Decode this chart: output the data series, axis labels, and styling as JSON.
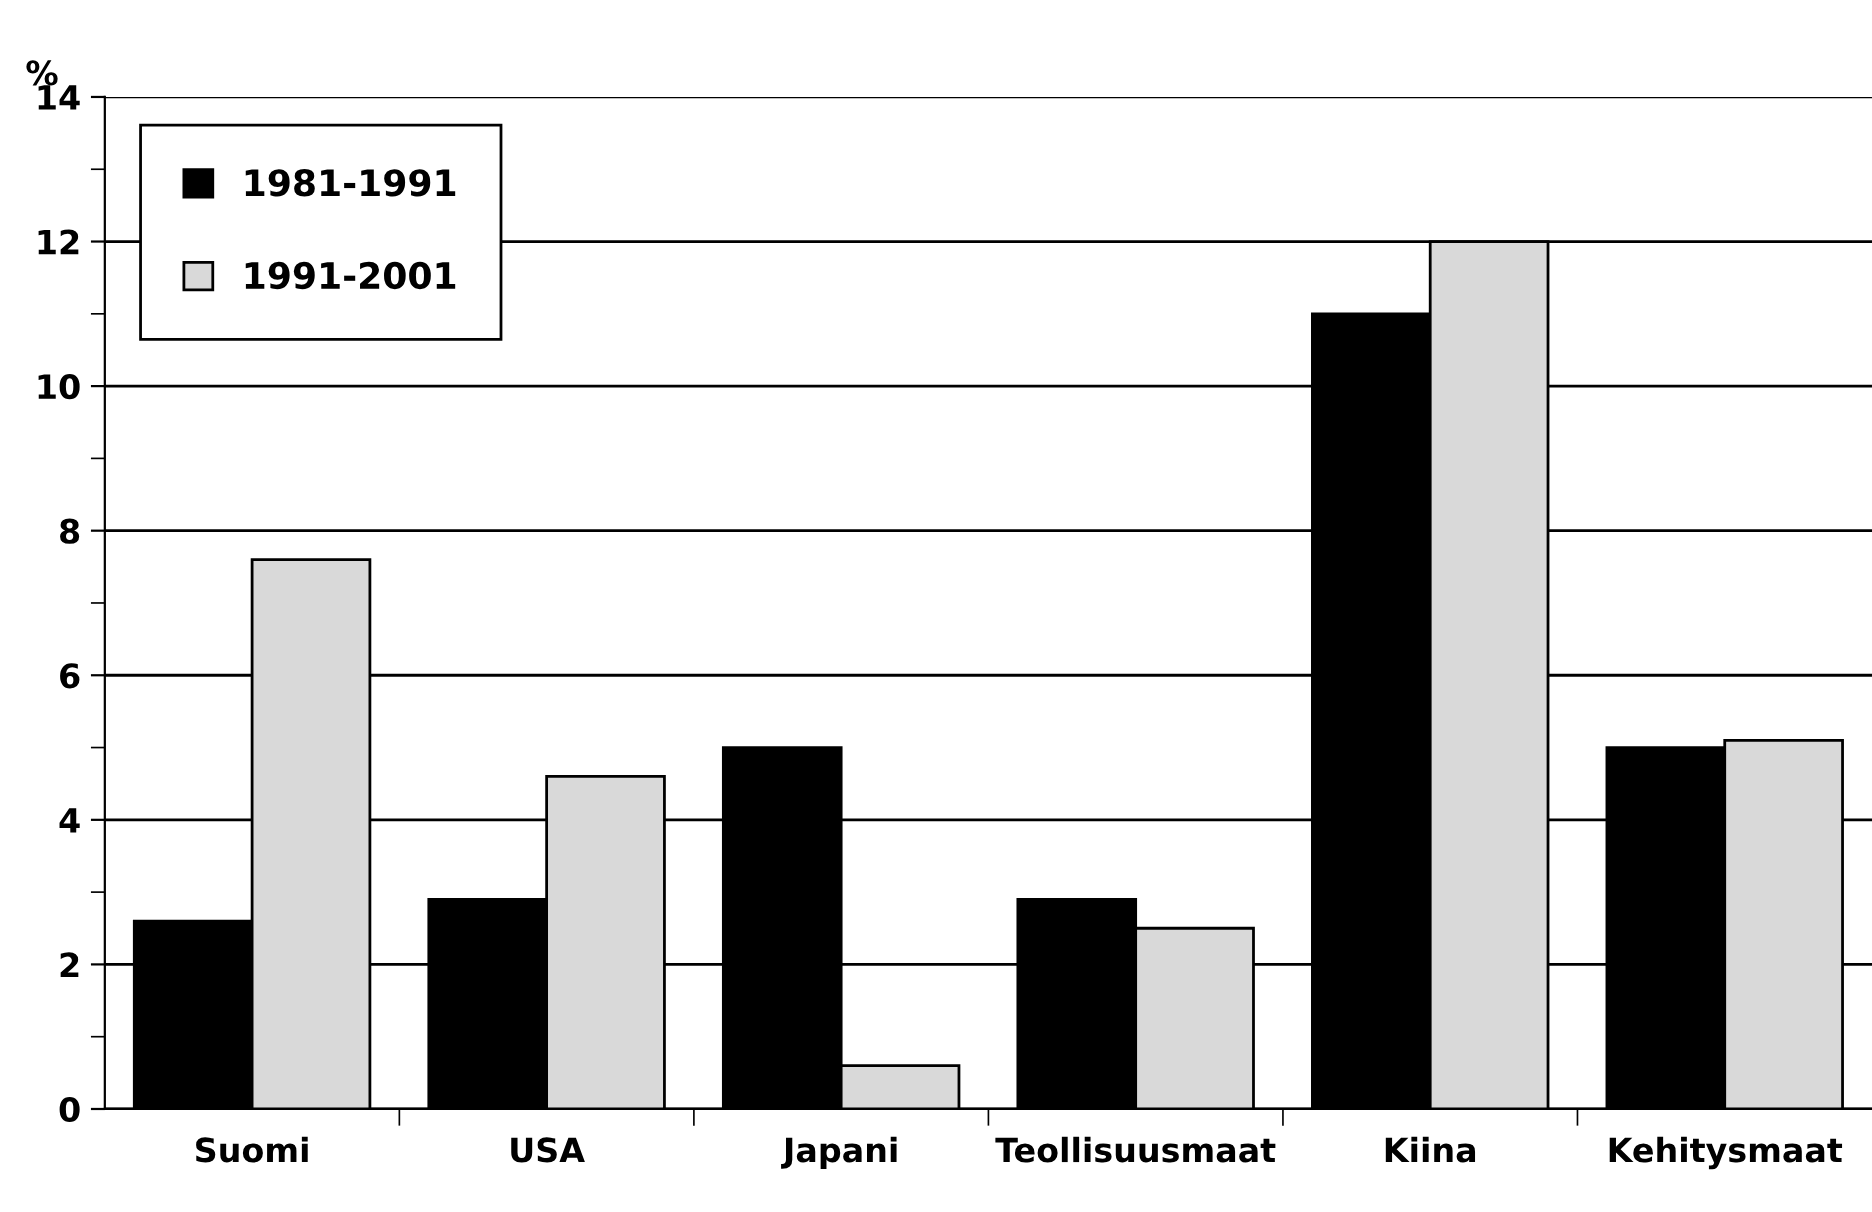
{
  "chart_data": {
    "type": "bar",
    "ylabel": "%",
    "categories": [
      "Suomi",
      "USA",
      "Japani",
      "Teollisuusmaat",
      "Kiina",
      "Kehitysmaat"
    ],
    "series": [
      {
        "name": "1981-1991",
        "color": "#000000",
        "values": [
          2.6,
          2.9,
          5.0,
          2.9,
          11.0,
          5.0
        ]
      },
      {
        "name": "1991-2001",
        "color": "#d9d9d9",
        "values": [
          7.6,
          4.6,
          0.6,
          2.5,
          12.0,
          5.1
        ]
      }
    ],
    "ylim": [
      0,
      14
    ],
    "yticks": [
      0,
      {
        "value": 1,
        "label": null
      },
      2,
      {
        "value": 3,
        "label": null
      },
      4,
      {
        "value": 5,
        "label": null
      },
      6,
      {
        "value": 7,
        "label": null
      },
      8,
      {
        "value": 9,
        "label": null
      },
      10,
      {
        "value": 11,
        "label": null
      },
      12,
      {
        "value": 13,
        "label": null
      },
      14
    ],
    "grid": "y",
    "legend": "top left"
  }
}
